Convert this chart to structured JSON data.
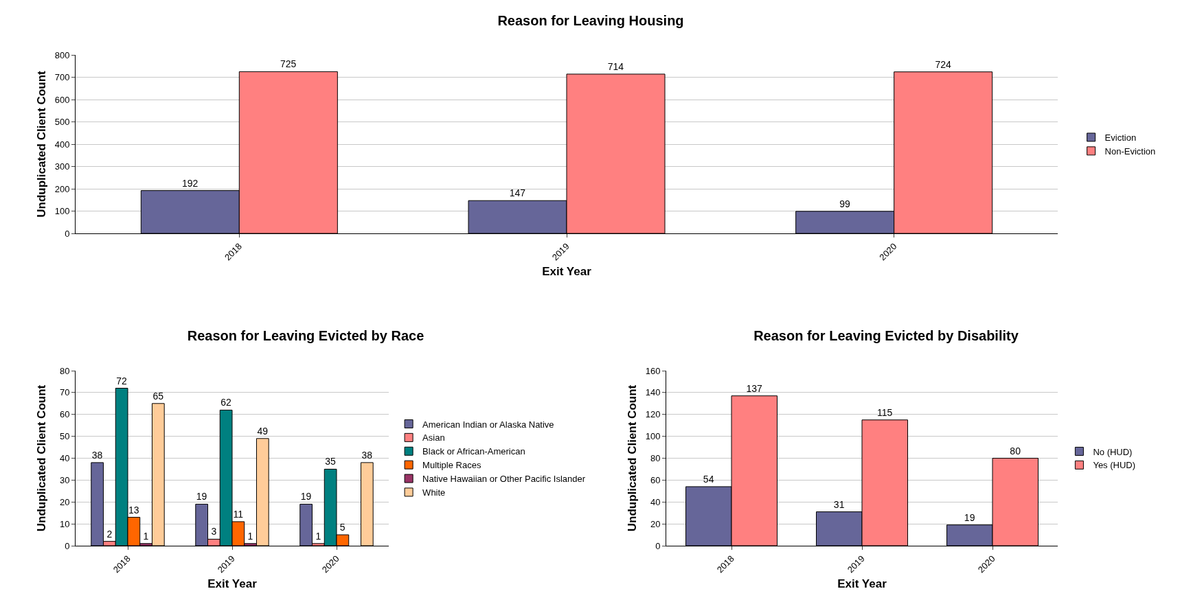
{
  "chart_data": [
    {
      "type": "bar",
      "title": "Reason for Leaving Housing",
      "xlabel": "Exit Year",
      "ylabel": "Unduplicated Client Count",
      "categories": [
        "2018",
        "2019",
        "2020"
      ],
      "series": [
        {
          "name": "Eviction",
          "color": "#666699",
          "values": [
            192,
            147,
            99
          ]
        },
        {
          "name": "Non-Eviction",
          "color": "#ff8080",
          "values": [
            725,
            714,
            724
          ]
        }
      ],
      "ylim": [
        0,
        800
      ],
      "yticks": [
        0,
        100,
        200,
        300,
        400,
        500,
        600,
        700,
        800
      ],
      "grid": "y",
      "legend": "right",
      "data_labels": true
    },
    {
      "type": "bar",
      "title": "Reason for Leaving Evicted by Race",
      "xlabel": "Exit Year",
      "ylabel": "Unduplicated Client Count",
      "categories": [
        "2018",
        "2019",
        "2020"
      ],
      "series": [
        {
          "name": "American Indian or Alaska Native",
          "color": "#666699",
          "values": [
            38,
            19,
            19
          ]
        },
        {
          "name": "Asian",
          "color": "#ff8080",
          "values": [
            2,
            3,
            1
          ]
        },
        {
          "name": "Black or African-American",
          "color": "#008080",
          "values": [
            72,
            62,
            35
          ]
        },
        {
          "name": "Multiple Races",
          "color": "#ff6600",
          "values": [
            13,
            11,
            5
          ]
        },
        {
          "name": "Native Hawaiian or Other Pacific Islander",
          "color": "#993366",
          "values": [
            1,
            1,
            null
          ]
        },
        {
          "name": "White",
          "color": "#ffcc99",
          "values": [
            65,
            49,
            38
          ]
        }
      ],
      "ylim": [
        0,
        80
      ],
      "yticks": [
        0,
        10,
        20,
        30,
        40,
        50,
        60,
        70,
        80
      ],
      "grid": "y",
      "legend": "right",
      "data_labels": true
    },
    {
      "type": "bar",
      "title": "Reason for Leaving Evicted by Disability",
      "xlabel": "Exit Year",
      "ylabel": "Unduplicated Client Count",
      "categories": [
        "2018",
        "2019",
        "2020"
      ],
      "series": [
        {
          "name": "No (HUD)",
          "color": "#666699",
          "values": [
            54,
            31,
            19
          ]
        },
        {
          "name": "Yes (HUD)",
          "color": "#ff8080",
          "values": [
            137,
            115,
            80
          ]
        }
      ],
      "ylim": [
        0,
        160
      ],
      "yticks": [
        0,
        20,
        40,
        60,
        80,
        100,
        120,
        140,
        160
      ],
      "grid": "y",
      "legend": "right",
      "data_labels": true
    }
  ]
}
